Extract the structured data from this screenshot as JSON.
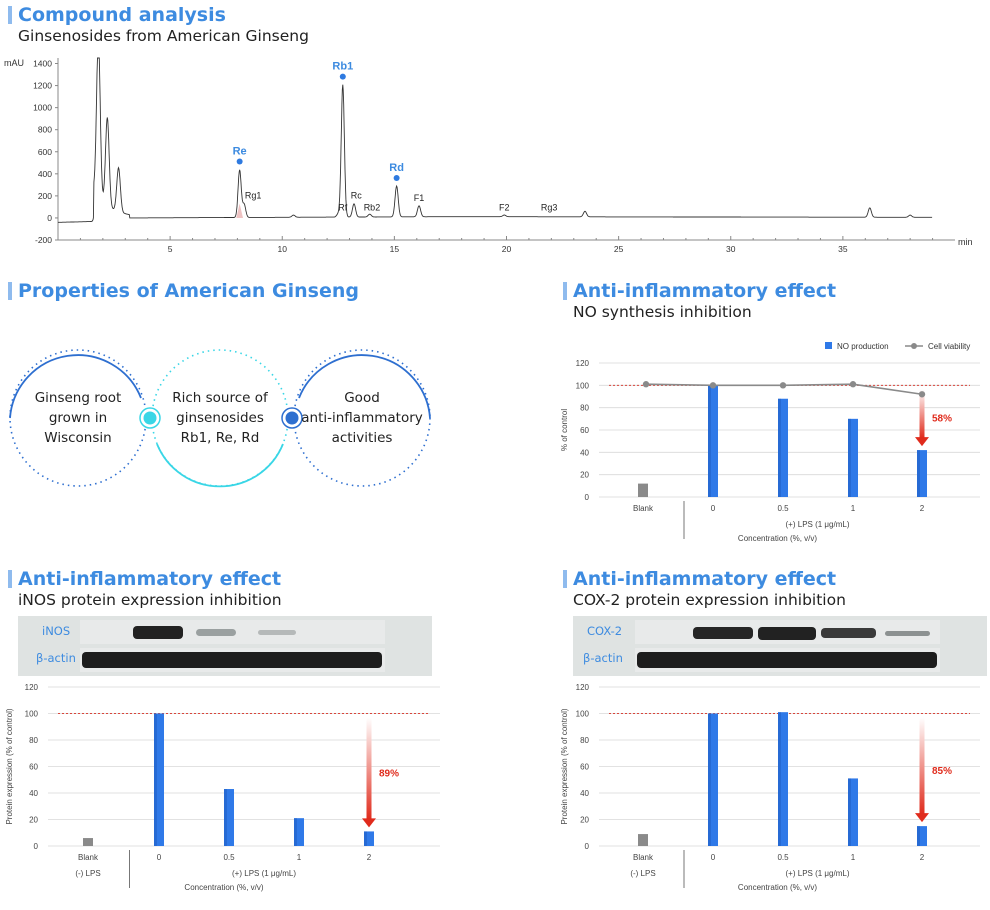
{
  "sections": {
    "compound": {
      "title": "Compound analysis",
      "subtitle": "Ginsenosides from American Ginseng"
    },
    "properties": {
      "title": "Properties of American Ginseng"
    },
    "no": {
      "title": "Anti-inflammatory effect",
      "subtitle": "NO synthesis inhibition"
    },
    "inos": {
      "title": "Anti-inflammatory effect",
      "subtitle": "iNOS protein expression inhibition"
    },
    "cox": {
      "title": "Anti-inflammatory effect",
      "subtitle": "COX-2 protein expression inhibition"
    }
  },
  "properties": {
    "circles": [
      {
        "lines": [
          "Ginseng root",
          "grown in",
          "Wisconsin"
        ]
      },
      {
        "lines": [
          "Rich source of",
          "ginsenosides",
          "Rb1, Re, Rd"
        ]
      },
      {
        "lines": [
          "Good",
          "anti-inflammatory",
          "activities"
        ]
      }
    ],
    "colors": {
      "blue": "#2e6fd0",
      "cyan": "#39d6e6"
    }
  },
  "blots": {
    "inos": {
      "target": "iNOS",
      "loading": "β-actin"
    },
    "cox": {
      "target": "COX-2",
      "loading": "β-actin"
    }
  },
  "chart_data": [
    {
      "id": "chromatogram",
      "type": "line",
      "ylabel": "mAU",
      "xlabel": "min",
      "xlim": [
        0,
        40
      ],
      "ylim": [
        -200,
        1450
      ],
      "xticks": [
        5,
        10,
        15,
        20,
        25,
        30,
        35
      ],
      "yticks": [
        -200,
        0,
        200,
        400,
        600,
        800,
        1000,
        1200,
        1400
      ],
      "peaks": [
        {
          "x": 1.8,
          "y": 1450
        },
        {
          "x": 2.2,
          "y": 800
        },
        {
          "x": 2.7,
          "y": 400
        },
        {
          "x": 8.1,
          "y": 430
        },
        {
          "x": 8.3,
          "y": 120
        },
        {
          "x": 10.5,
          "y": 20
        },
        {
          "x": 12.5,
          "y": 30
        },
        {
          "x": 12.7,
          "y": 1200
        },
        {
          "x": 13.2,
          "y": 120
        },
        {
          "x": 13.9,
          "y": 25
        },
        {
          "x": 15.1,
          "y": 280
        },
        {
          "x": 16.1,
          "y": 100
        },
        {
          "x": 19.9,
          "y": 15
        },
        {
          "x": 23.5,
          "y": 50
        },
        {
          "x": 36.2,
          "y": 85
        },
        {
          "x": 38.0,
          "y": 20
        }
      ],
      "annotations": [
        {
          "label": "Re",
          "x": 8.1,
          "y": 430,
          "highlight": true
        },
        {
          "label": "Rg1",
          "x": 8.7,
          "y": 130,
          "highlight": false
        },
        {
          "label": "Rb1",
          "x": 12.7,
          "y": 1200,
          "highlight": true
        },
        {
          "label": "Rf",
          "x": 12.7,
          "y": 20,
          "highlight": false
        },
        {
          "label": "Rc",
          "x": 13.3,
          "y": 130,
          "highlight": false
        },
        {
          "label": "Rb2",
          "x": 14.0,
          "y": 20,
          "highlight": false
        },
        {
          "label": "Rd",
          "x": 15.1,
          "y": 280,
          "highlight": true
        },
        {
          "label": "F1",
          "x": 16.1,
          "y": 110,
          "highlight": false
        },
        {
          "label": "F2",
          "x": 19.9,
          "y": 20,
          "highlight": false
        },
        {
          "label": "Rg3",
          "x": 21.9,
          "y": 20,
          "highlight": false
        }
      ]
    },
    {
      "id": "no-chart",
      "type": "bar",
      "ylabel": "% of control",
      "xlabel": "Concentration (%, v/v)",
      "group_label": "(+) LPS (1 μg/mL)",
      "ylim": [
        0,
        120
      ],
      "yticks": [
        0,
        20,
        40,
        60,
        80,
        100,
        120
      ],
      "categories": [
        "Blank",
        "0",
        "0.5",
        "1",
        "2"
      ],
      "series": [
        {
          "name": "NO production",
          "values": [
            12,
            100,
            88,
            70,
            42
          ]
        },
        {
          "name": "Cell viability",
          "values": [
            null,
            100,
            100,
            101,
            92
          ]
        }
      ],
      "reference_line": 100,
      "annotation": "58%",
      "legend": "top-right"
    },
    {
      "id": "inos-chart",
      "type": "bar",
      "ylabel": "Protein expression (% of control)",
      "xlabel": "Concentration (%, v/v)",
      "group_label": "(+) LPS (1 μg/mL)",
      "neg_label": "(-) LPS",
      "ylim": [
        0,
        120
      ],
      "yticks": [
        0,
        20,
        40,
        60,
        80,
        100,
        120
      ],
      "categories": [
        "Blank",
        "0",
        "0.5",
        "1",
        "2"
      ],
      "values": [
        6,
        100,
        43,
        21,
        11
      ],
      "reference_line": 100,
      "annotation": "89%"
    },
    {
      "id": "cox-chart",
      "type": "bar",
      "ylabel": "Protein expression (% of control)",
      "xlabel": "Concentration (%, v/v)",
      "group_label": "(+) LPS (1 μg/mL)",
      "neg_label": "(-) LPS",
      "ylim": [
        0,
        120
      ],
      "yticks": [
        0,
        20,
        40,
        60,
        80,
        100,
        120
      ],
      "categories": [
        "Blank",
        "0",
        "0.5",
        "1",
        "2"
      ],
      "values": [
        9,
        100,
        101,
        51,
        15
      ],
      "reference_line": 100,
      "annotation": "85%"
    }
  ]
}
